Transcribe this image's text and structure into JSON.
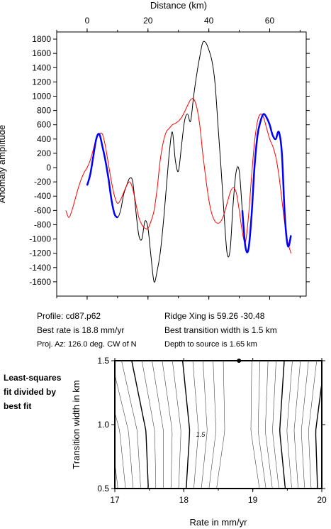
{
  "chart_data": [
    {
      "type": "line",
      "title": "",
      "xlabel": "Distance (km)",
      "ylabel": "Anomaly amplitude",
      "xlim": [
        -10,
        72
      ],
      "ylim": [
        -1800,
        1900
      ],
      "x_ticks": [
        "0",
        "20",
        "40",
        "60"
      ],
      "y_ticks": [
        "1800",
        "1600",
        "1400",
        "1200",
        "1000",
        "800",
        "600",
        "400",
        "200",
        "0",
        "-200",
        "-400",
        "-600",
        "-800",
        "-1000",
        "-1200",
        "-1400",
        "-1600"
      ],
      "series": [
        {
          "color": "#000000",
          "x": [
            0,
            1,
            2,
            3,
            4,
            5,
            6,
            7,
            8,
            9,
            10,
            11,
            12,
            13,
            14,
            15,
            16,
            17,
            18,
            19,
            20,
            21,
            22,
            23,
            24,
            25,
            26,
            27,
            28,
            29,
            30,
            31,
            32,
            33,
            34,
            35,
            36,
            37,
            38,
            39,
            40,
            41,
            42,
            43,
            44,
            45,
            46,
            47,
            48,
            49,
            50,
            51,
            52,
            53,
            54,
            55,
            56,
            57,
            58,
            59,
            60,
            61,
            62,
            63,
            64,
            65,
            66,
            67
          ],
          "y": [
            -250,
            -100,
            150,
            400,
            470,
            300,
            100,
            -150,
            -450,
            -650,
            -700,
            -600,
            -380,
            -250,
            -150,
            -200,
            -600,
            -950,
            -1000,
            -750,
            -850,
            -1250,
            -1600,
            -1450,
            -1200,
            -800,
            -300,
            200,
            500,
            100,
            -50,
            300,
            650,
            750,
            650,
            1000,
            1300,
            1550,
            1750,
            1750,
            1650,
            1500,
            1200,
            600,
            0,
            -650,
            -1200,
            -1150,
            -500,
            -50,
            -50,
            -600,
            -1100,
            -1150,
            -700,
            0,
            450,
            650,
            750,
            700,
            600,
            450,
            400,
            500,
            200,
            -700,
            -1100,
            -950
          ]
        },
        {
          "color": "#ff0000",
          "x": [
            -7,
            -6,
            -5,
            -4,
            -3,
            -2,
            -1,
            0,
            1,
            2,
            3,
            4,
            5,
            6,
            7,
            8,
            9,
            10,
            11,
            12,
            13,
            14,
            15,
            16,
            17,
            18,
            19,
            20,
            21,
            22,
            23,
            24,
            25,
            26,
            27,
            28,
            29,
            30,
            31,
            32,
            33,
            34,
            35,
            36,
            37,
            38,
            39,
            40,
            41,
            42,
            43,
            44,
            45,
            46,
            47,
            48,
            49,
            50,
            51,
            52,
            53,
            54,
            55,
            56,
            57,
            58,
            59,
            60,
            61,
            62,
            63,
            64,
            65,
            66,
            67
          ],
          "y": [
            -600,
            -700,
            -600,
            -450,
            -300,
            -170,
            -70,
            0,
            100,
            250,
            400,
            470,
            470,
            300,
            50,
            -200,
            -400,
            -500,
            -450,
            -350,
            -250,
            -200,
            -300,
            -500,
            -700,
            -800,
            -850,
            -850,
            -750,
            -600,
            -300,
            100,
            350,
            500,
            550,
            600,
            620,
            650,
            700,
            780,
            870,
            950,
            960,
            850,
            600,
            200,
            -150,
            -450,
            -650,
            -750,
            -780,
            -750,
            -650,
            -500,
            -350,
            -280,
            -350,
            -600,
            -900,
            -1050,
            -700,
            -150,
            350,
            650,
            750,
            700,
            550,
            400,
            300,
            150,
            -100,
            -450,
            -800,
            -1050,
            -1200
          ]
        },
        {
          "color": "#0000ff",
          "x": [
            0,
            1,
            2,
            3,
            4,
            5,
            6,
            7,
            8,
            9,
            10,
            51,
            52,
            53,
            54,
            55,
            56,
            57,
            58,
            59,
            60,
            61,
            62,
            63,
            64,
            65,
            66,
            67
          ],
          "y": [
            -250,
            -100,
            150,
            400,
            470,
            300,
            100,
            -150,
            -450,
            -650,
            -700,
            -600,
            -1100,
            -1150,
            -700,
            0,
            450,
            650,
            750,
            700,
            600,
            450,
            400,
            500,
            200,
            -700,
            -1100,
            -950
          ]
        }
      ]
    },
    {
      "type": "contour",
      "title": "",
      "xlabel": "Rate in mm/yr",
      "ylabel": "Transition width in km",
      "xlim": [
        17,
        20
      ],
      "ylim": [
        0.5,
        1.5
      ],
      "x_ticks": [
        "17",
        "18",
        "19",
        "20"
      ],
      "y_ticks": [
        "1.5",
        "1.0",
        "0.5"
      ],
      "contour_label": "1.5",
      "best_fit": {
        "rate": 18.8,
        "width": 1.5
      }
    }
  ],
  "info": {
    "profile": "Profile: cd87.p62",
    "best_rate": "Best rate is 18.8 mm/yr",
    "proj_az": "Proj. Az: 126.0 deg. CW of N",
    "ridge_xing": "Ridge Xing is 59.26 -30.48",
    "best_width": "Best transition width is 1.5 km",
    "depth": "Depth to source is   1.65 km"
  },
  "side_label": [
    "Least-squares",
    "fit divided by",
    "best fit"
  ]
}
